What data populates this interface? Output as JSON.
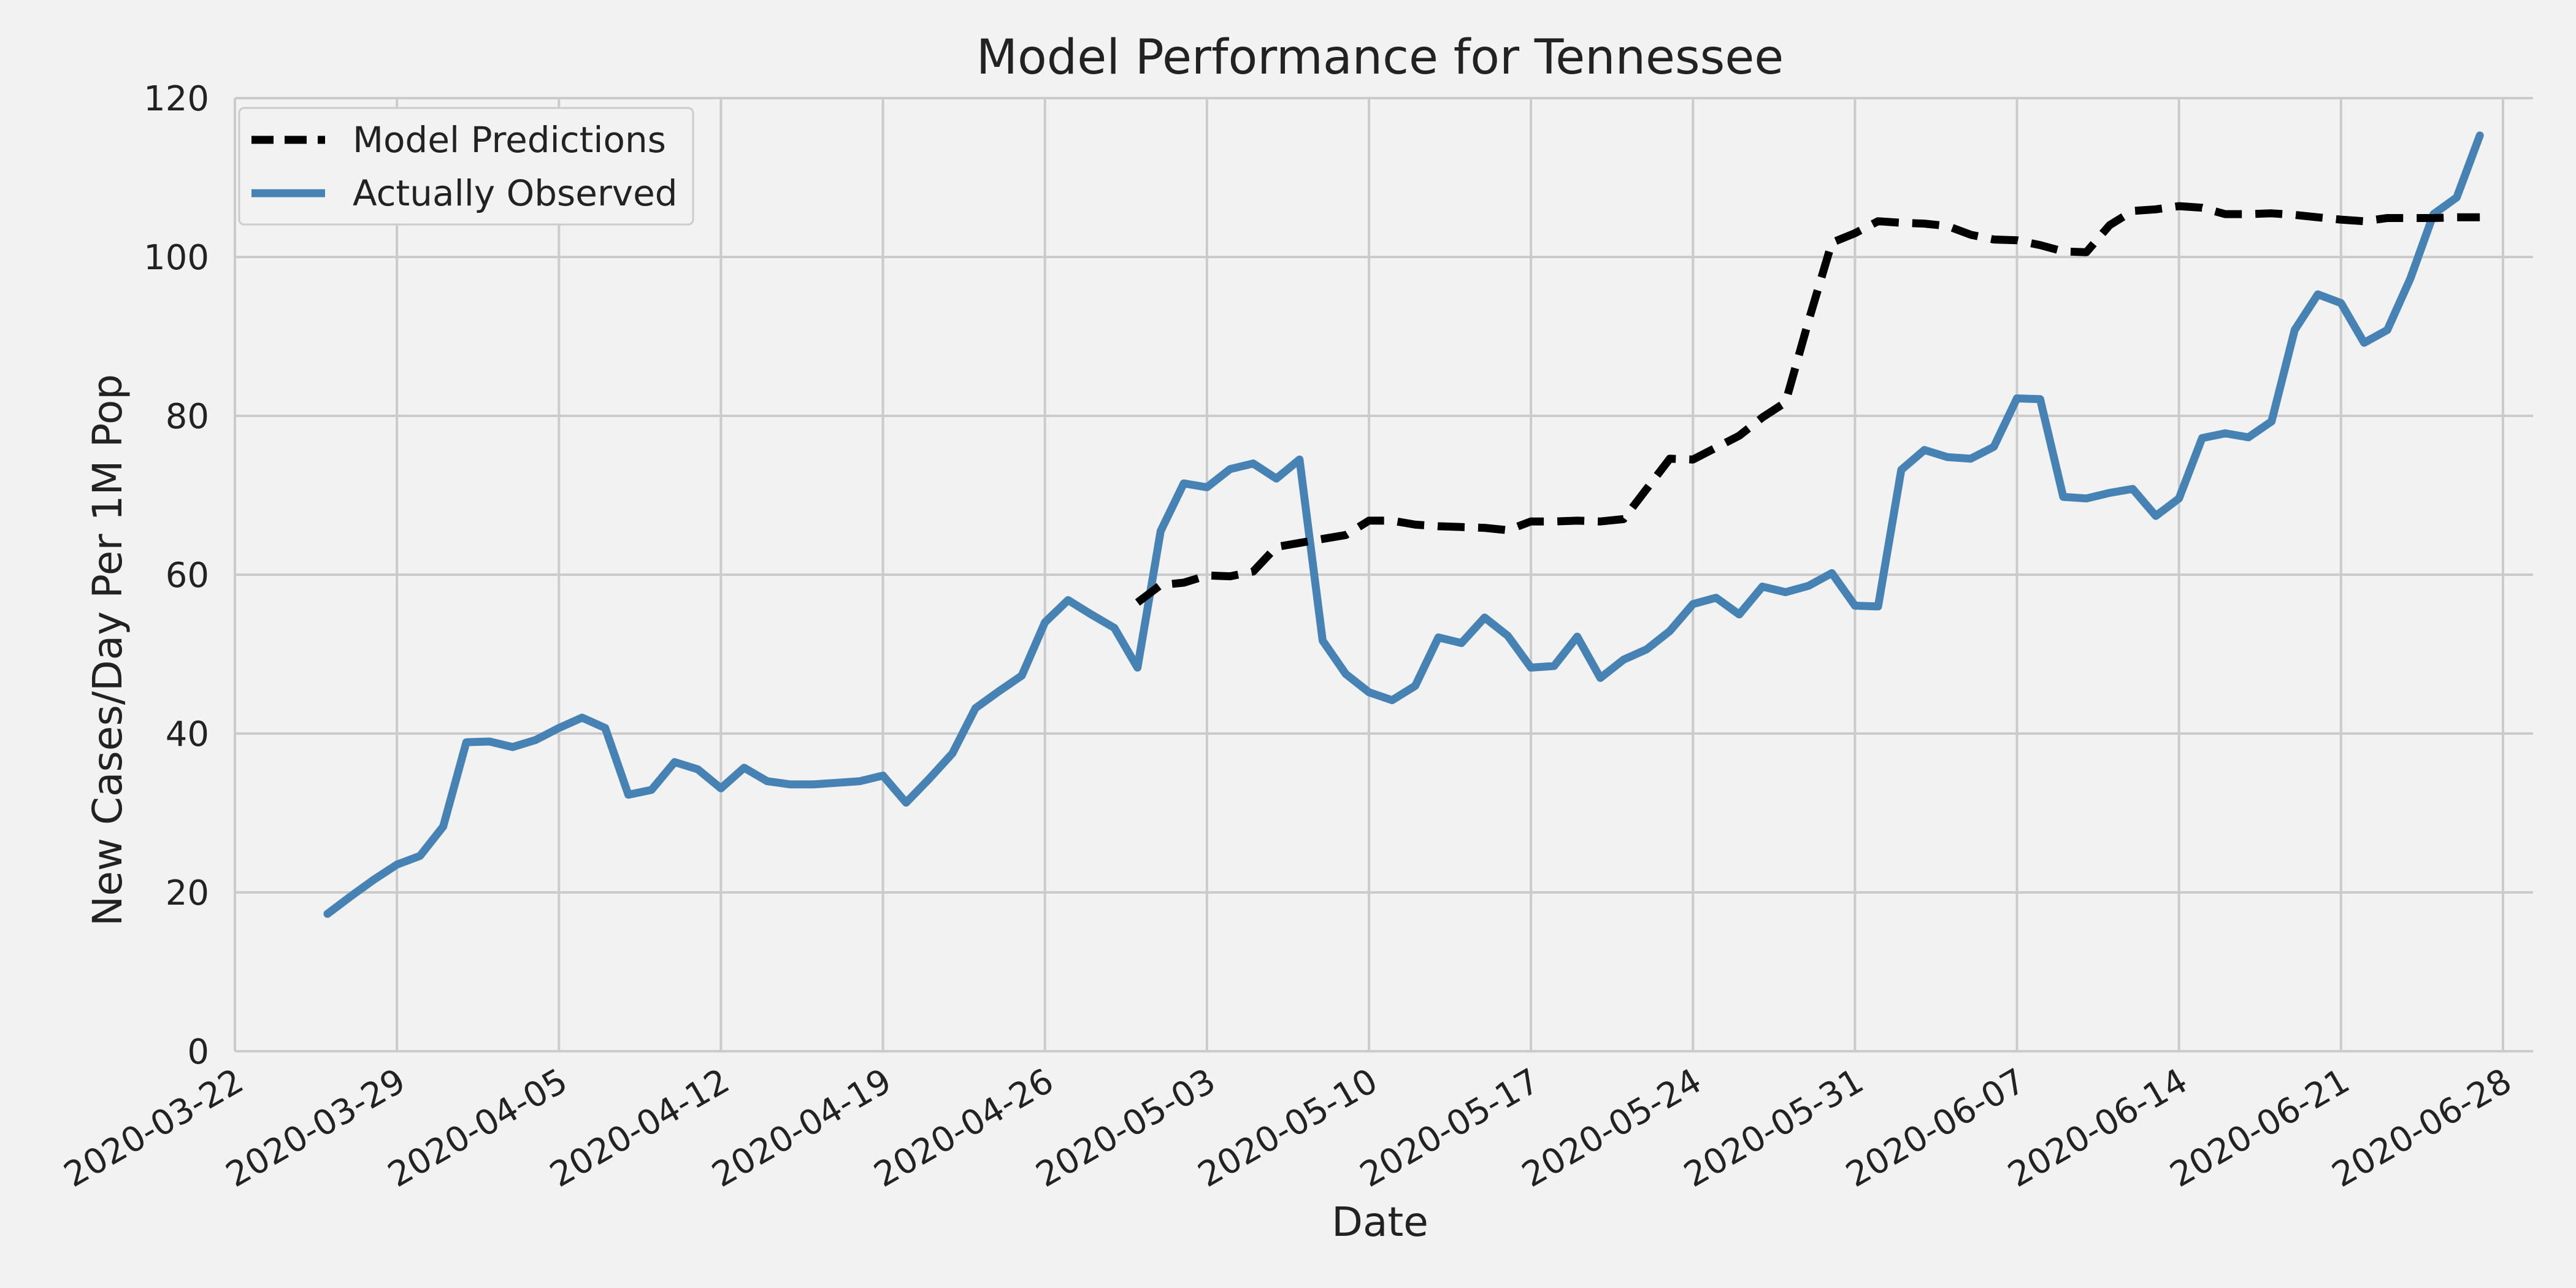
{
  "chart_data": {
    "type": "line",
    "title": "Model Performance for Tennessee",
    "xlabel": "Date",
    "ylabel": "New Cases/Day Per 1M Pop",
    "xlim": [
      "2020-03-22",
      "2020-06-28"
    ],
    "ylim": [
      0,
      120
    ],
    "grid": true,
    "legend_position": "top-left",
    "x_ticks": [
      "2020-03-22",
      "2020-03-29",
      "2020-04-05",
      "2020-04-12",
      "2020-04-19",
      "2020-04-26",
      "2020-05-03",
      "2020-05-10",
      "2020-05-17",
      "2020-05-24",
      "2020-05-31",
      "2020-06-07",
      "2020-06-14",
      "2020-06-21",
      "2020-06-28"
    ],
    "y_ticks": [
      0,
      20,
      40,
      60,
      80,
      100,
      120
    ],
    "series": [
      {
        "name": "Model Predictions",
        "color": "#000000",
        "style": "dashed",
        "points": [
          [
            "2020-04-30",
            56.5
          ],
          [
            "2020-05-01",
            58.7
          ],
          [
            "2020-05-02",
            59.0
          ],
          [
            "2020-05-03",
            59.9
          ],
          [
            "2020-05-04",
            59.8
          ],
          [
            "2020-05-05",
            60.4
          ],
          [
            "2020-05-06",
            63.5
          ],
          [
            "2020-05-07",
            64.0
          ],
          [
            "2020-05-08",
            64.5
          ],
          [
            "2020-05-09",
            65.0
          ],
          [
            "2020-05-10",
            66.8
          ],
          [
            "2020-05-11",
            66.8
          ],
          [
            "2020-05-12",
            66.3
          ],
          [
            "2020-05-13",
            66.1
          ],
          [
            "2020-05-14",
            66.0
          ],
          [
            "2020-05-15",
            65.9
          ],
          [
            "2020-05-16",
            65.6
          ],
          [
            "2020-05-17",
            66.7
          ],
          [
            "2020-05-18",
            66.7
          ],
          [
            "2020-05-19",
            66.8
          ],
          [
            "2020-05-20",
            66.7
          ],
          [
            "2020-05-21",
            67.0
          ],
          [
            "2020-05-22",
            70.8
          ],
          [
            "2020-05-23",
            74.6
          ],
          [
            "2020-05-24",
            74.5
          ],
          [
            "2020-05-25",
            76.0
          ],
          [
            "2020-05-26",
            77.5
          ],
          [
            "2020-05-27",
            79.8
          ],
          [
            "2020-05-28",
            81.7
          ],
          [
            "2020-05-29",
            92.0
          ],
          [
            "2020-05-30",
            101.8
          ],
          [
            "2020-05-31",
            103.0
          ],
          [
            "2020-06-01",
            104.5
          ],
          [
            "2020-06-02",
            104.3
          ],
          [
            "2020-06-03",
            104.2
          ],
          [
            "2020-06-04",
            103.9
          ],
          [
            "2020-06-05",
            102.8
          ],
          [
            "2020-06-06",
            102.2
          ],
          [
            "2020-06-07",
            102.1
          ],
          [
            "2020-06-08",
            101.5
          ],
          [
            "2020-06-09",
            100.7
          ],
          [
            "2020-06-10",
            100.6
          ],
          [
            "2020-06-11",
            104.0
          ],
          [
            "2020-06-12",
            105.8
          ],
          [
            "2020-06-13",
            106.0
          ],
          [
            "2020-06-14",
            106.4
          ],
          [
            "2020-06-15",
            106.2
          ],
          [
            "2020-06-16",
            105.4
          ],
          [
            "2020-06-17",
            105.4
          ],
          [
            "2020-06-18",
            105.5
          ],
          [
            "2020-06-19",
            105.3
          ],
          [
            "2020-06-20",
            105.0
          ],
          [
            "2020-06-21",
            104.7
          ],
          [
            "2020-06-22",
            104.5
          ],
          [
            "2020-06-23",
            104.9
          ],
          [
            "2020-06-24",
            104.9
          ],
          [
            "2020-06-25",
            104.9
          ],
          [
            "2020-06-26",
            105.0
          ],
          [
            "2020-06-27",
            105.0
          ]
        ]
      },
      {
        "name": "Actually Observed",
        "color": "#4682b4",
        "style": "solid",
        "points": [
          [
            "2020-03-26",
            17.3
          ],
          [
            "2020-03-27",
            19.5
          ],
          [
            "2020-03-28",
            21.6
          ],
          [
            "2020-03-29",
            23.5
          ],
          [
            "2020-03-30",
            24.6
          ],
          [
            "2020-03-31",
            28.3
          ],
          [
            "2020-04-01",
            38.9
          ],
          [
            "2020-04-02",
            39.0
          ],
          [
            "2020-04-03",
            38.3
          ],
          [
            "2020-04-04",
            39.2
          ],
          [
            "2020-04-05",
            40.7
          ],
          [
            "2020-04-06",
            42.0
          ],
          [
            "2020-04-07",
            40.7
          ],
          [
            "2020-04-08",
            32.3
          ],
          [
            "2020-04-09",
            32.9
          ],
          [
            "2020-04-10",
            36.4
          ],
          [
            "2020-04-11",
            35.5
          ],
          [
            "2020-04-12",
            33.1
          ],
          [
            "2020-04-13",
            35.7
          ],
          [
            "2020-04-14",
            34.0
          ],
          [
            "2020-04-15",
            33.6
          ],
          [
            "2020-04-16",
            33.6
          ],
          [
            "2020-04-17",
            33.8
          ],
          [
            "2020-04-18",
            34.0
          ],
          [
            "2020-04-19",
            34.7
          ],
          [
            "2020-04-20",
            31.3
          ],
          [
            "2020-04-21",
            34.3
          ],
          [
            "2020-04-22",
            37.5
          ],
          [
            "2020-04-23",
            43.2
          ],
          [
            "2020-04-24",
            45.3
          ],
          [
            "2020-04-25",
            47.3
          ],
          [
            "2020-04-26",
            54.0
          ],
          [
            "2020-04-27",
            56.8
          ],
          [
            "2020-04-28",
            55.0
          ],
          [
            "2020-04-29",
            53.3
          ],
          [
            "2020-04-30",
            48.3
          ],
          [
            "2020-05-01",
            65.5
          ],
          [
            "2020-05-02",
            71.5
          ],
          [
            "2020-05-03",
            71.0
          ],
          [
            "2020-05-04",
            73.3
          ],
          [
            "2020-05-05",
            74.0
          ],
          [
            "2020-05-06",
            72.1
          ],
          [
            "2020-05-07",
            74.5
          ],
          [
            "2020-05-08",
            51.7
          ],
          [
            "2020-05-09",
            47.5
          ],
          [
            "2020-05-10",
            45.2
          ],
          [
            "2020-05-11",
            44.2
          ],
          [
            "2020-05-12",
            46.0
          ],
          [
            "2020-05-13",
            52.1
          ],
          [
            "2020-05-14",
            51.4
          ],
          [
            "2020-05-15",
            54.6
          ],
          [
            "2020-05-16",
            52.3
          ],
          [
            "2020-05-17",
            48.3
          ],
          [
            "2020-05-18",
            48.5
          ],
          [
            "2020-05-19",
            52.2
          ],
          [
            "2020-05-20",
            47.0
          ],
          [
            "2020-05-21",
            49.3
          ],
          [
            "2020-05-22",
            50.6
          ],
          [
            "2020-05-23",
            52.9
          ],
          [
            "2020-05-24",
            56.3
          ],
          [
            "2020-05-25",
            57.1
          ],
          [
            "2020-05-26",
            55.0
          ],
          [
            "2020-05-27",
            58.5
          ],
          [
            "2020-05-28",
            57.8
          ],
          [
            "2020-05-29",
            58.6
          ],
          [
            "2020-05-30",
            60.2
          ],
          [
            "2020-05-31",
            56.1
          ],
          [
            "2020-06-01",
            56.0
          ],
          [
            "2020-06-02",
            73.2
          ],
          [
            "2020-06-03",
            75.7
          ],
          [
            "2020-06-04",
            74.8
          ],
          [
            "2020-06-05",
            74.6
          ],
          [
            "2020-06-06",
            76.1
          ],
          [
            "2020-06-07",
            82.2
          ],
          [
            "2020-06-08",
            82.1
          ],
          [
            "2020-06-09",
            69.8
          ],
          [
            "2020-06-10",
            69.6
          ],
          [
            "2020-06-11",
            70.3
          ],
          [
            "2020-06-12",
            70.8
          ],
          [
            "2020-06-13",
            67.4
          ],
          [
            "2020-06-14",
            69.6
          ],
          [
            "2020-06-15",
            77.2
          ],
          [
            "2020-06-16",
            77.8
          ],
          [
            "2020-06-17",
            77.3
          ],
          [
            "2020-06-18",
            79.3
          ],
          [
            "2020-06-19",
            90.8
          ],
          [
            "2020-06-20",
            95.3
          ],
          [
            "2020-06-21",
            94.2
          ],
          [
            "2020-06-22",
            89.2
          ],
          [
            "2020-06-23",
            90.8
          ],
          [
            "2020-06-24",
            97.3
          ],
          [
            "2020-06-25",
            105.4
          ],
          [
            "2020-06-26",
            107.5
          ],
          [
            "2020-06-27",
            115.3
          ]
        ]
      }
    ]
  }
}
